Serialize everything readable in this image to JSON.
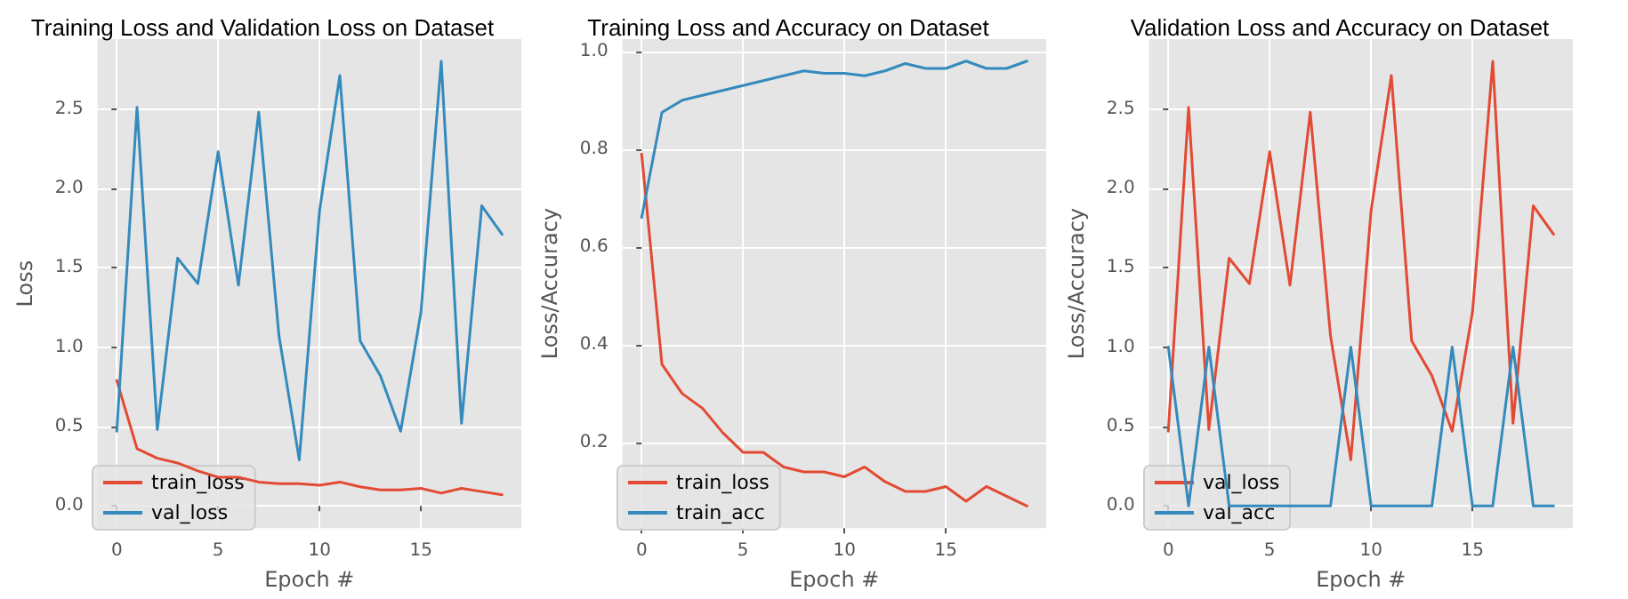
{
  "chart_data": [
    {
      "type": "line",
      "title": "Training Loss and Validation Loss on Dataset",
      "xlabel": "Epoch #",
      "ylabel": "Loss",
      "x": [
        0,
        1,
        2,
        3,
        4,
        5,
        6,
        7,
        8,
        9,
        10,
        11,
        12,
        13,
        14,
        15,
        16,
        17,
        18,
        19
      ],
      "series": [
        {
          "name": "train_loss",
          "color": "#e24a33",
          "values": [
            0.79,
            0.36,
            0.3,
            0.27,
            0.22,
            0.18,
            0.18,
            0.15,
            0.14,
            0.14,
            0.13,
            0.15,
            0.12,
            0.1,
            0.1,
            0.11,
            0.08,
            0.11,
            0.09,
            0.07
          ]
        },
        {
          "name": "val_loss",
          "color": "#348abd",
          "values": [
            0.47,
            2.51,
            0.48,
            1.56,
            1.4,
            2.23,
            1.39,
            2.48,
            1.07,
            0.29,
            1.86,
            2.71,
            1.04,
            0.82,
            0.47,
            1.22,
            2.8,
            0.52,
            1.89,
            1.71
          ]
        }
      ],
      "xlim": [
        -0.95,
        19.95
      ],
      "xticks": [
        0,
        5,
        10,
        15
      ],
      "ylim": [
        -0.14,
        2.94
      ],
      "yticks": [
        {
          "value": 0,
          "label": "0.0"
        },
        0.5,
        {
          "value": 1,
          "label": "1.0"
        },
        1.5,
        {
          "value": 2,
          "label": "2.0"
        },
        2.5
      ],
      "grid": true,
      "legend": "bottom left"
    },
    {
      "type": "line",
      "title": "Training Loss and Accuracy on Dataset",
      "xlabel": "Epoch #",
      "ylabel": "Loss/Accuracy",
      "x": [
        0,
        1,
        2,
        3,
        4,
        5,
        6,
        7,
        8,
        9,
        10,
        11,
        12,
        13,
        14,
        15,
        16,
        17,
        18,
        19
      ],
      "series": [
        {
          "name": "train_loss",
          "color": "#e24a33",
          "values": [
            0.79,
            0.36,
            0.3,
            0.27,
            0.22,
            0.18,
            0.18,
            0.15,
            0.14,
            0.14,
            0.13,
            0.15,
            0.12,
            0.1,
            0.1,
            0.11,
            0.08,
            0.11,
            0.09,
            0.07
          ]
        },
        {
          "name": "train_acc",
          "color": "#348abd",
          "values": [
            0.66,
            0.875,
            0.9,
            0.91,
            0.92,
            0.93,
            0.94,
            0.95,
            0.96,
            0.955,
            0.955,
            0.95,
            0.96,
            0.975,
            0.965,
            0.965,
            0.98,
            0.965,
            0.965,
            0.98
          ]
        }
      ],
      "xlim": [
        -0.95,
        19.95
      ],
      "xticks": [
        0,
        5,
        10,
        15
      ],
      "ylim": [
        0.025,
        1.025
      ],
      "yticks": [
        0.2,
        0.4,
        0.6,
        0.8,
        {
          "value": 1,
          "label": "1.0"
        }
      ],
      "grid": true,
      "legend": "bottom left"
    },
    {
      "type": "line",
      "title": "Validation Loss and Accuracy on Dataset",
      "xlabel": "Epoch #",
      "ylabel": "Loss/Accuracy",
      "x": [
        0,
        1,
        2,
        3,
        4,
        5,
        6,
        7,
        8,
        9,
        10,
        11,
        12,
        13,
        14,
        15,
        16,
        17,
        18,
        19
      ],
      "series": [
        {
          "name": "val_loss",
          "color": "#e24a33",
          "values": [
            0.47,
            2.51,
            0.48,
            1.56,
            1.4,
            2.23,
            1.39,
            2.48,
            1.07,
            0.29,
            1.86,
            2.71,
            1.04,
            0.82,
            0.47,
            1.22,
            2.8,
            0.52,
            1.89,
            1.71
          ]
        },
        {
          "name": "val_acc",
          "color": "#348abd",
          "values": [
            1,
            0,
            1,
            0,
            0,
            0,
            0,
            0,
            0,
            1,
            0,
            0,
            0,
            0,
            1,
            0,
            0,
            1,
            0,
            0
          ]
        }
      ],
      "xlim": [
        -0.95,
        19.95
      ],
      "xticks": [
        0,
        5,
        10,
        15
      ],
      "ylim": [
        -0.14,
        2.94
      ],
      "yticks": [
        {
          "value": 0,
          "label": "0.0"
        },
        0.5,
        {
          "value": 1,
          "label": "1.0"
        },
        1.5,
        {
          "value": 2,
          "label": "2.0"
        },
        2.5
      ],
      "grid": true,
      "legend": "bottom left"
    }
  ]
}
